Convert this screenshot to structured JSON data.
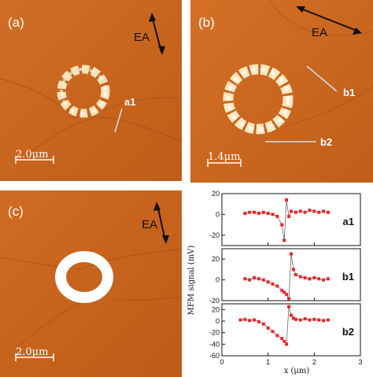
{
  "panel_a": {
    "label": "(a)",
    "ea_label": "EA",
    "scale_bar_label": "2.0μm",
    "line_label": "a1",
    "colors": {
      "background": "#c8651d",
      "ring": "#f8e2b8"
    }
  },
  "panel_b": {
    "label": "(b)",
    "ea_label": "EA",
    "scale_bar_label": "1.4μm",
    "line_labels": [
      "b1",
      "b2"
    ],
    "colors": {
      "background": "#c76620",
      "ring": "#fbe8bf"
    }
  },
  "panel_c": {
    "label": "(c)",
    "ea_label": "EA",
    "scale_bar_label": "2.0μm",
    "colors": {
      "background": "#c8641e",
      "ring": "#ffffff"
    }
  },
  "chart_data": {
    "type": "scatter",
    "ylabel": "MFM signal (mV)",
    "xlabel": "x (μm)",
    "xlim": [
      0,
      3
    ],
    "x_ticks": [
      0,
      1,
      2,
      3
    ],
    "marker_color": "#e8262a",
    "subplots": [
      {
        "name": "a1",
        "ylim": [
          -30,
          20
        ],
        "y_ticks": [
          20,
          0,
          -20
        ],
        "x": [
          0.5,
          0.6,
          0.7,
          0.8,
          0.9,
          1.0,
          1.1,
          1.2,
          1.3,
          1.35,
          1.4,
          1.45,
          1.5,
          1.6,
          1.7,
          1.8,
          1.9,
          2.0,
          2.1,
          2.2,
          2.3
        ],
        "y": [
          1,
          2,
          2,
          1,
          2,
          1,
          0,
          -2,
          -10,
          -25,
          14,
          -2,
          3,
          2,
          3,
          2,
          4,
          3,
          2,
          3,
          2
        ]
      },
      {
        "name": "b1",
        "ylim": [
          -20,
          30
        ],
        "y_ticks": [
          20,
          0,
          -20
        ],
        "x": [
          0.5,
          0.6,
          0.7,
          0.8,
          0.9,
          1.0,
          1.1,
          1.2,
          1.3,
          1.35,
          1.4,
          1.45,
          1.5,
          1.55,
          1.6,
          1.7,
          1.8,
          1.9,
          2.0,
          2.1,
          2.2,
          2.3
        ],
        "y": [
          1,
          0,
          2,
          1,
          0,
          -2,
          -4,
          -6,
          -10,
          -12,
          -14,
          -18,
          25,
          10,
          5,
          3,
          2,
          1,
          2,
          1,
          0,
          1
        ]
      },
      {
        "name": "b2",
        "ylim": [
          -60,
          30
        ],
        "y_ticks": [
          20,
          0,
          -20,
          -40,
          -60
        ],
        "x": [
          0.4,
          0.5,
          0.6,
          0.7,
          0.8,
          0.9,
          1.0,
          1.1,
          1.2,
          1.3,
          1.35,
          1.4,
          1.45,
          1.5,
          1.55,
          1.6,
          1.7,
          1.8,
          1.9,
          2.0,
          2.1,
          2.2,
          2.3
        ],
        "y": [
          2,
          3,
          1,
          2,
          -1,
          -5,
          -12,
          -18,
          -25,
          -30,
          -35,
          -40,
          25,
          10,
          5,
          3,
          2,
          4,
          2,
          3,
          2,
          1,
          2
        ]
      }
    ]
  }
}
